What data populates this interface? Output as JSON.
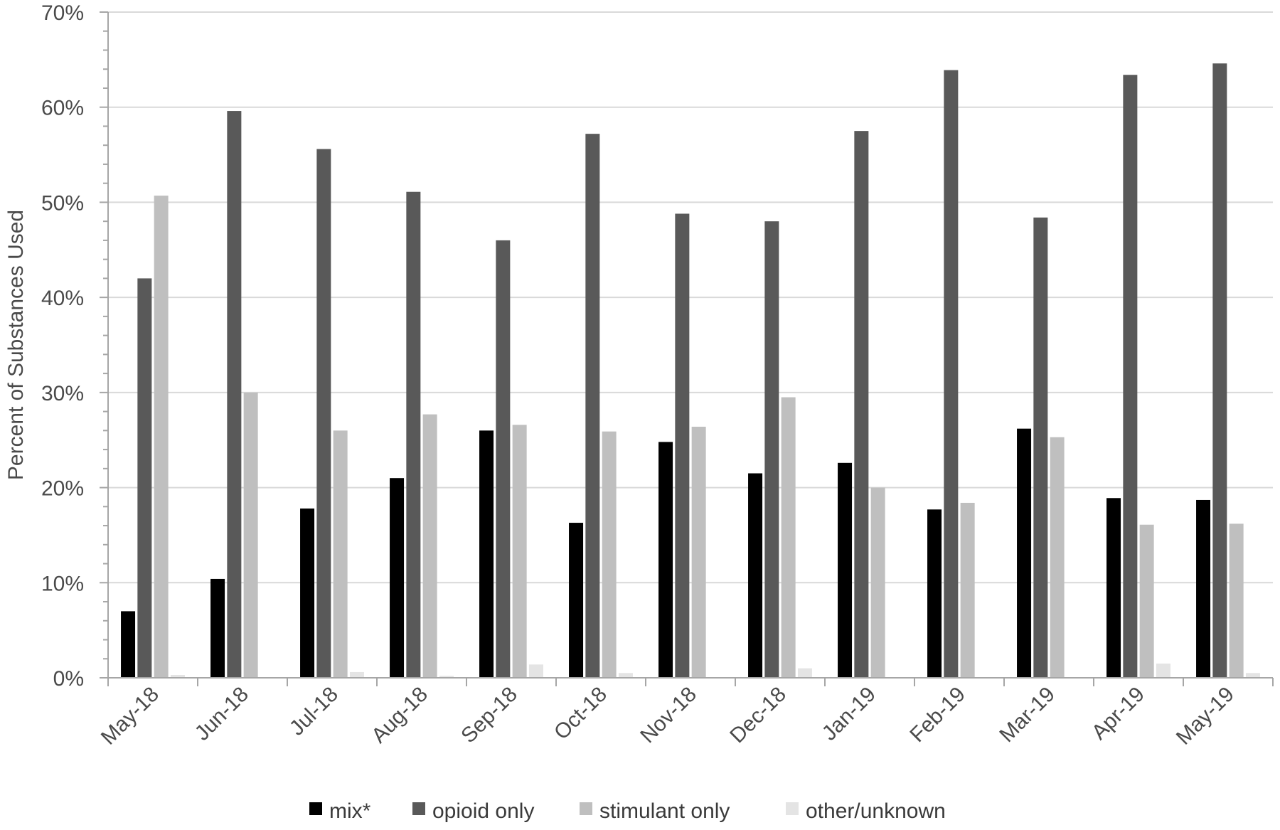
{
  "chart_data": {
    "type": "bar",
    "title": "",
    "xlabel": "",
    "ylabel": "Percent of Substances Used",
    "ylim": [
      0,
      70
    ],
    "y_ticks": [
      "0%",
      "10%",
      "20%",
      "30%",
      "40%",
      "50%",
      "60%",
      "70%"
    ],
    "y_tick_values": [
      0,
      10,
      20,
      30,
      40,
      50,
      60,
      70
    ],
    "grid": true,
    "legend_position": "bottom",
    "categories": [
      "May-18",
      "Jun-18",
      "Jul-18",
      "Aug-18",
      "Sep-18",
      "Oct-18",
      "Nov-18",
      "Dec-18",
      "Jan-19",
      "Feb-19",
      "Mar-19",
      "Apr-19",
      "May-19"
    ],
    "series": [
      {
        "name": "mix*",
        "color": "#000000",
        "values": [
          7.0,
          10.4,
          17.8,
          21.0,
          26.0,
          16.3,
          24.8,
          21.5,
          22.6,
          17.7,
          26.2,
          18.9,
          18.7
        ]
      },
      {
        "name": "opioid only",
        "color": "#595959",
        "values": [
          42.0,
          59.6,
          55.6,
          51.1,
          46.0,
          57.2,
          48.8,
          48.0,
          57.5,
          63.9,
          48.4,
          63.4,
          64.6
        ]
      },
      {
        "name": "stimulant only",
        "color": "#bfbfbf",
        "values": [
          50.7,
          30.0,
          26.0,
          27.7,
          26.6,
          25.9,
          26.4,
          29.5,
          20.0,
          18.4,
          25.3,
          16.1,
          16.2
        ]
      },
      {
        "name": "other/unknown",
        "color": "#e4e4e4",
        "values": [
          0.3,
          0.0,
          0.6,
          0.2,
          1.4,
          0.5,
          0.0,
          1.0,
          0.0,
          0.0,
          0.0,
          1.5,
          0.5
        ]
      }
    ]
  }
}
